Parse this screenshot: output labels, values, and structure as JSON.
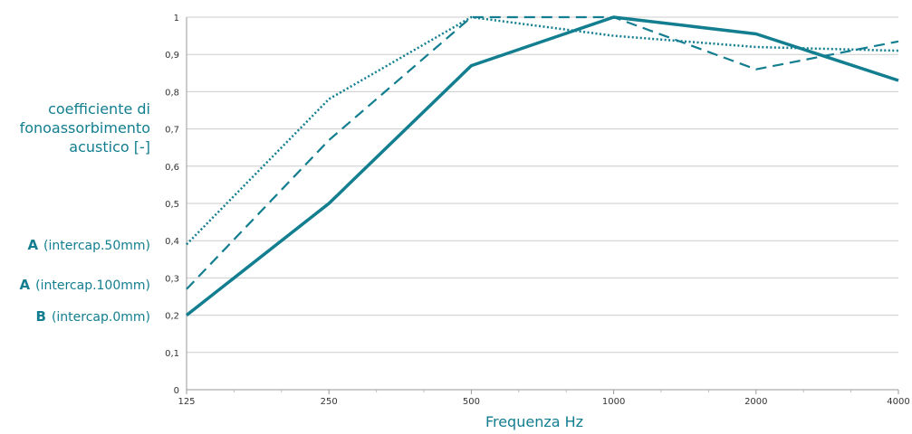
{
  "chart_data": {
    "type": "line",
    "x_scale": "log",
    "categories": [
      "125",
      "250",
      "500",
      "1000",
      "2000",
      "4000"
    ],
    "x": [
      125,
      250,
      500,
      1000,
      2000,
      4000
    ],
    "ylim": [
      0,
      1
    ],
    "yticks": [
      "0",
      "0,1",
      "0,2",
      "0,3",
      "0,4",
      "0,5",
      "0,6",
      "0,7",
      "0,8",
      "0,9",
      "1"
    ],
    "xlabel": "Frequenza Hz",
    "ylabel": "coefficiente di fonoassorbimento acustico [-]",
    "grid": "horizontal",
    "series": [
      {
        "key": "A",
        "name": "(intercap.50mm)",
        "style": "dotted",
        "values": [
          0.39,
          0.78,
          1.0,
          0.95,
          0.92,
          0.91
        ]
      },
      {
        "key": "A",
        "name": "(intercap.100mm)",
        "style": "dashed",
        "values": [
          0.27,
          0.67,
          1.0,
          1.0,
          0.86,
          0.935
        ]
      },
      {
        "key": "B",
        "name": "(intercap.0mm)",
        "style": "solid",
        "values": [
          0.2,
          0.5,
          0.87,
          1.0,
          0.955,
          0.83
        ]
      }
    ],
    "colors": {
      "line": "#127e8f",
      "grid": "#cccccc",
      "axis": "#999999"
    }
  }
}
